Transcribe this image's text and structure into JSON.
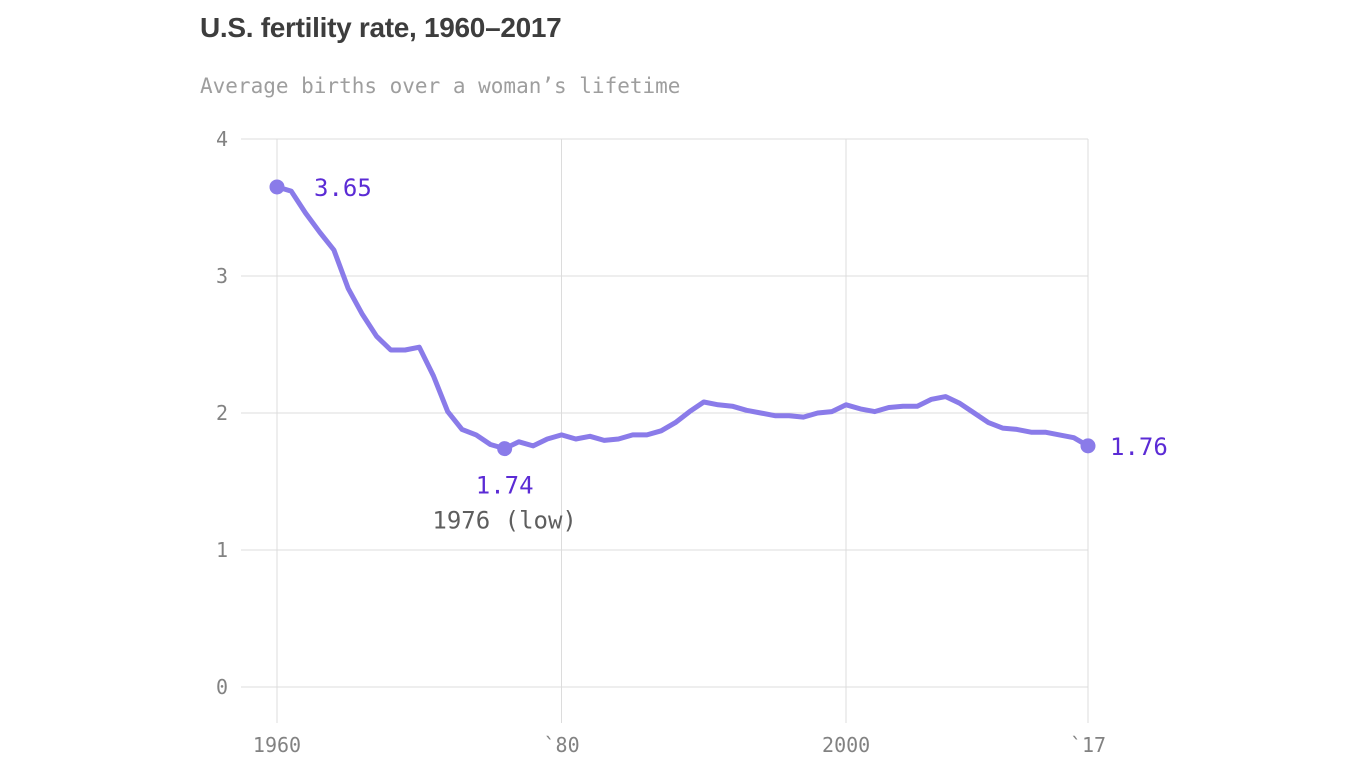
{
  "header": {
    "title": "U.S. fertility rate, 1960–2017",
    "subtitle": "Average births over a woman’s lifetime"
  },
  "colors": {
    "background": "#ffffff",
    "title": "#3d3d3d",
    "subtitle": "#9e9e9e",
    "grid": "#dcdcdc",
    "tick_label": "#828282",
    "line": "#8a7be9",
    "marker": "#8a7be9",
    "annotation_value": "#5b2bd5",
    "annotation_sub": "#5e5e5e"
  },
  "chart_data": {
    "type": "line",
    "title": "U.S. fertility rate, 1960–2017",
    "subtitle": "Average births over a woman’s lifetime",
    "xlabel": "",
    "ylabel": "",
    "ylim": [
      0,
      4
    ],
    "grid": true,
    "legend": "none",
    "years": [
      1960,
      1961,
      1962,
      1963,
      1964,
      1965,
      1966,
      1967,
      1968,
      1969,
      1970,
      1971,
      1972,
      1973,
      1974,
      1975,
      1976,
      1977,
      1978,
      1979,
      1980,
      1981,
      1982,
      1983,
      1984,
      1985,
      1986,
      1987,
      1988,
      1989,
      1990,
      1991,
      1992,
      1993,
      1994,
      1995,
      1996,
      1997,
      1998,
      1999,
      2000,
      2001,
      2002,
      2003,
      2004,
      2005,
      2006,
      2007,
      2008,
      2009,
      2010,
      2011,
      2012,
      2013,
      2014,
      2015,
      2016,
      2017
    ],
    "values": [
      3.65,
      3.62,
      3.46,
      3.32,
      3.19,
      2.91,
      2.72,
      2.56,
      2.46,
      2.46,
      2.48,
      2.27,
      2.01,
      1.88,
      1.84,
      1.77,
      1.74,
      1.79,
      1.76,
      1.81,
      1.84,
      1.81,
      1.83,
      1.8,
      1.81,
      1.84,
      1.84,
      1.87,
      1.93,
      2.01,
      2.08,
      2.06,
      2.05,
      2.02,
      2.0,
      1.98,
      1.98,
      1.97,
      2.0,
      2.01,
      2.06,
      2.03,
      2.01,
      2.04,
      2.05,
      2.05,
      2.1,
      2.12,
      2.07,
      2.0,
      1.93,
      1.89,
      1.88,
      1.86,
      1.86,
      1.84,
      1.82,
      1.76
    ],
    "y_ticks": [
      {
        "value": 0,
        "label": "0"
      },
      {
        "value": 1,
        "label": "1"
      },
      {
        "value": 2,
        "label": "2"
      },
      {
        "value": 3,
        "label": "3"
      },
      {
        "value": 4,
        "label": "4"
      }
    ],
    "x_ticks": [
      {
        "year": 1960,
        "label": "1960"
      },
      {
        "year": 1980,
        "label": "`80"
      },
      {
        "year": 2000,
        "label": "2000"
      },
      {
        "year": 2017,
        "label": "`17"
      }
    ],
    "annotations": [
      {
        "year": 1960,
        "value": 3.65,
        "label": "3.65",
        "placement": "right",
        "dx": 37
      },
      {
        "year": 1976,
        "value": 1.74,
        "label": "1.74",
        "placement": "below",
        "sub_label": "1976 (low)"
      },
      {
        "year": 2017,
        "value": 1.76,
        "label": "1.76",
        "placement": "right",
        "dx": 22
      }
    ]
  }
}
